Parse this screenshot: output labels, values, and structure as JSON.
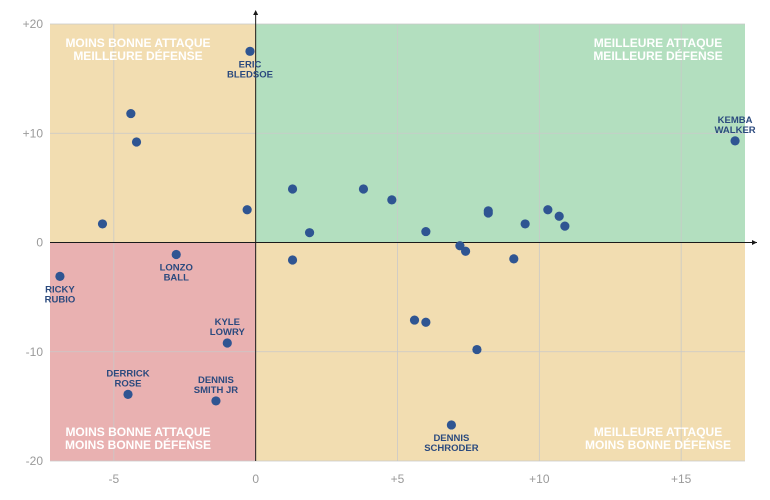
{
  "chart_data": {
    "type": "scatter",
    "xlim": [
      -7.25,
      17.25
    ],
    "ylim": [
      -20,
      20
    ],
    "x_ticks": [
      {
        "value": -5,
        "label": "-5"
      },
      {
        "value": 0,
        "label": "0"
      },
      {
        "value": 5,
        "label": "+5"
      },
      {
        "value": 10,
        "label": "+10"
      },
      {
        "value": 15,
        "label": "+15"
      }
    ],
    "y_ticks": [
      {
        "value": 20,
        "label": "+20"
      },
      {
        "value": 10,
        "label": "+10"
      },
      {
        "value": 0,
        "label": "0"
      },
      {
        "value": -10,
        "label": "-10"
      },
      {
        "value": -20,
        "label": "-20"
      }
    ],
    "grid": true,
    "colors": {
      "top_left": "#f2ddb1",
      "top_right": "#b3dfbf",
      "bottom_left": "#e9b1b1",
      "bottom_right": "#f2ddb1",
      "points": "#2f5592",
      "labels": "#2b4a7e",
      "grid": "#c9c9c9"
    },
    "quadrants": {
      "top_left": [
        "MOINS BONNE ATTAQUE",
        "MEILLEURE DÉFENSE"
      ],
      "top_right": [
        "MEILLEURE ATTAQUE",
        "MEILLEURE DÉFENSE"
      ],
      "bottom_left": [
        "MOINS BONNE ATTAQUE",
        "MOINS BONNE DÉFENSE"
      ],
      "bottom_right": [
        "MEILLEURE ATTAQUE",
        "MOINS BONNE DÉFENSE"
      ]
    },
    "points": [
      {
        "x": -0.2,
        "y": 17.5,
        "label": [
          "ERIC",
          "BLEDSOE"
        ],
        "label_side": "below"
      },
      {
        "x": 16.9,
        "y": 9.3,
        "label": [
          "KEMBA",
          "WALKER"
        ],
        "label_side": "above"
      },
      {
        "x": -2.8,
        "y": -1.1,
        "label": [
          "LONZO",
          "BALL"
        ],
        "label_side": "below"
      },
      {
        "x": -6.9,
        "y": -3.1,
        "label": [
          "RICKY",
          "RUBIO"
        ],
        "label_side": "below"
      },
      {
        "x": -1.0,
        "y": -9.2,
        "label": [
          "KYLE",
          "LOWRY"
        ],
        "label_side": "above"
      },
      {
        "x": -4.5,
        "y": -13.9,
        "label": [
          "DERRICK",
          "ROSE"
        ],
        "label_side": "above"
      },
      {
        "x": -1.4,
        "y": -14.5,
        "label": [
          "DENNIS",
          "SMITH JR"
        ],
        "label_side": "above"
      },
      {
        "x": 6.9,
        "y": -16.7,
        "label": [
          "DENNIS",
          "SCHRODER"
        ],
        "label_side": "below"
      },
      {
        "x": -4.4,
        "y": 11.8
      },
      {
        "x": -4.2,
        "y": 9.2
      },
      {
        "x": -5.4,
        "y": 1.7
      },
      {
        "x": -0.3,
        "y": 3.0
      },
      {
        "x": 1.3,
        "y": 4.9
      },
      {
        "x": 1.9,
        "y": 0.9
      },
      {
        "x": 1.3,
        "y": -1.6
      },
      {
        "x": 3.8,
        "y": 4.9
      },
      {
        "x": 4.8,
        "y": 3.9
      },
      {
        "x": 6.0,
        "y": 1.0
      },
      {
        "x": 7.2,
        "y": -0.3
      },
      {
        "x": 7.4,
        "y": -0.8
      },
      {
        "x": 8.2,
        "y": 2.9
      },
      {
        "x": 8.2,
        "y": 2.7
      },
      {
        "x": 9.1,
        "y": -1.5
      },
      {
        "x": 9.5,
        "y": 1.7
      },
      {
        "x": 10.3,
        "y": 3.0
      },
      {
        "x": 10.7,
        "y": 2.4
      },
      {
        "x": 10.9,
        "y": 1.5
      },
      {
        "x": 5.6,
        "y": -7.1
      },
      {
        "x": 6.0,
        "y": -7.3
      },
      {
        "x": 7.8,
        "y": -9.8
      }
    ]
  }
}
